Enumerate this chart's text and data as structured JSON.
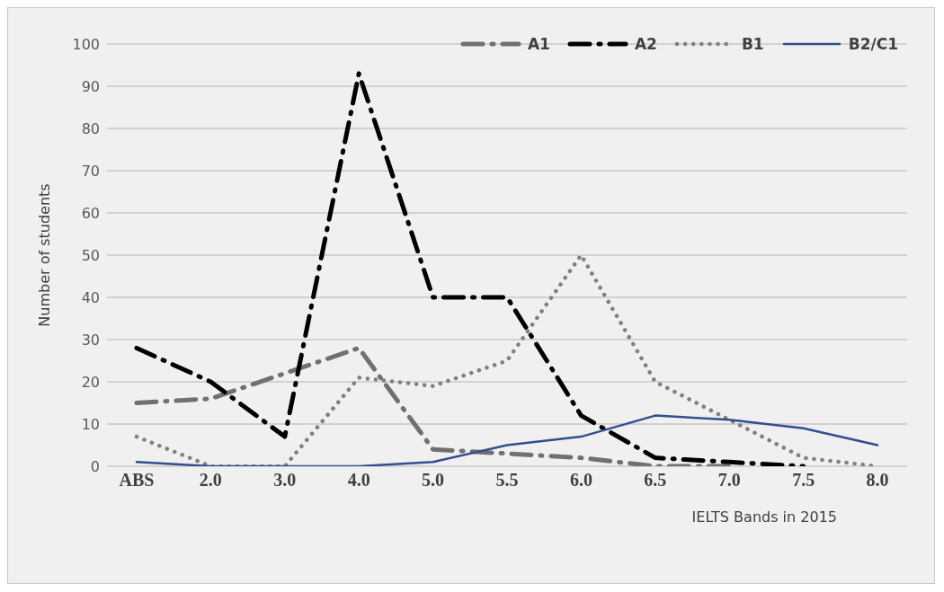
{
  "chart_data": {
    "type": "line",
    "xlabel": "IELTS Bands in 2015",
    "ylabel": "Number of students",
    "categories": [
      "ABS",
      "2.0",
      "3.0",
      "4.0",
      "5.0",
      "5.5",
      "6.0",
      "6.5",
      "7.0",
      "7.5",
      "8.0"
    ],
    "series": [
      {
        "name": "A1",
        "color": "#707070",
        "line_style": "dashed",
        "values": [
          15,
          16,
          22,
          28,
          4,
          3,
          2,
          0,
          0,
          null,
          null
        ]
      },
      {
        "name": "A2",
        "color": "#000000",
        "line_style": "dashed",
        "values": [
          28,
          20,
          7,
          93,
          40,
          40,
          12,
          2,
          1,
          0,
          null
        ]
      },
      {
        "name": "B1",
        "color": "#7f7f7f",
        "line_style": "dotted",
        "values": [
          7,
          0,
          0,
          21,
          19,
          25,
          50,
          20,
          11,
          2,
          0
        ]
      },
      {
        "name": "B2/C1",
        "color": "#2f4f8f",
        "line_style": "solid",
        "values": [
          1,
          0,
          0,
          0,
          1,
          5,
          7,
          12,
          11,
          9,
          5
        ]
      }
    ],
    "ylim": [
      0,
      100
    ],
    "yticks": [
      0,
      10,
      20,
      30,
      40,
      50,
      60,
      70,
      80,
      90,
      100
    ],
    "grid": "y",
    "legend": "top right",
    "marker": "none"
  }
}
